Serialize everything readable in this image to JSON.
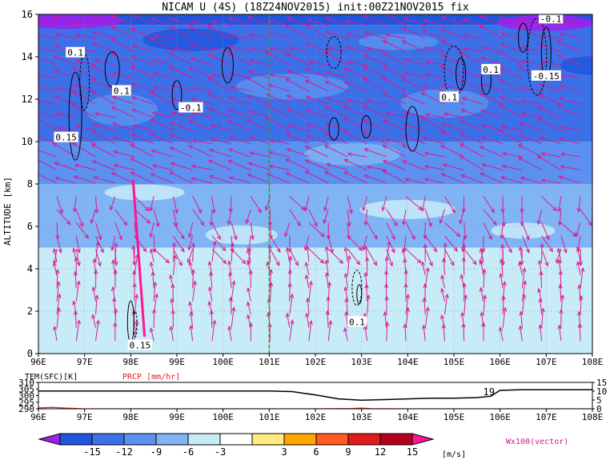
{
  "chart_data": [
    {
      "type": "heatmap",
      "title": "NICAM U (4S) (18Z24NOV2015) init:00Z21NOV2015 fix",
      "ylabel": "ALTITUDE [km]",
      "x_ticks": [
        "96E",
        "97E",
        "98E",
        "99E",
        "100E",
        "101E",
        "102E",
        "103E",
        "104E",
        "105E",
        "106E",
        "107E",
        "108E"
      ],
      "y_ticks": [
        "0",
        "2",
        "4",
        "6",
        "8",
        "10",
        "12",
        "14",
        "16"
      ],
      "xlim": [
        96,
        108
      ],
      "ylim": [
        0,
        16
      ],
      "marker_line_lon": 101,
      "field_description": "zonal wind U shaded in m/s; vectors show wind (Wx100)",
      "layers": [
        {
          "z_from": 0,
          "z_to": 3,
          "u": -1
        },
        {
          "z_from": 3,
          "z_to": 5,
          "u": -3
        },
        {
          "z_from": 5,
          "z_to": 7,
          "u": -4
        },
        {
          "z_from": 7,
          "z_to": 8,
          "u": -6
        },
        {
          "z_from": 8,
          "z_to": 10,
          "u": -9
        },
        {
          "z_from": 10,
          "z_to": 13,
          "u": -11
        },
        {
          "z_from": 13,
          "z_to": 15.5,
          "u": -12
        },
        {
          "z_from": 15.5,
          "z_to": 16,
          "u": -15
        }
      ],
      "contour_labels": [
        {
          "text": "0.1",
          "lon": 96.8,
          "z": 14.2
        },
        {
          "text": "0.1",
          "lon": 97.8,
          "z": 12.4
        },
        {
          "text": "-0.1",
          "lon": 99.3,
          "z": 11.6
        },
        {
          "text": "0.15",
          "lon": 96.6,
          "z": 10.2
        },
        {
          "text": "0.15",
          "lon": 98.2,
          "z": 0.4
        },
        {
          "text": "0.1",
          "lon": 102.9,
          "z": 1.5
        },
        {
          "text": "0.1",
          "lon": 104.9,
          "z": 12.1
        },
        {
          "text": "0.1",
          "lon": 105.8,
          "z": 13.4
        },
        {
          "text": "-0.15",
          "lon": 107.0,
          "z": 13.1
        },
        {
          "text": "-0.1",
          "lon": 107.1,
          "z": 15.8
        }
      ]
    },
    {
      "type": "line",
      "left_label": "TEM(SFC)[K]",
      "right_label": "PRCP [mm/hr]",
      "left_ticks": [
        "310",
        "305",
        "300",
        "295",
        "290"
      ],
      "right_ticks": [
        "15",
        "10",
        "5",
        "0"
      ],
      "x_ticks": [
        "96E",
        "97E",
        "98E",
        "99E",
        "100E",
        "101E",
        "102E",
        "103E",
        "104E",
        "105E",
        "106E",
        "107E",
        "108E"
      ],
      "left_ylim": [
        290,
        310
      ],
      "right_ylim": [
        0,
        15
      ],
      "series": [
        {
          "name": "TEM(SFC)[K]",
          "x": [
            96,
            97,
            98,
            99,
            100,
            101,
            101.5,
            102,
            102.5,
            103,
            103.5,
            104,
            104.5,
            105,
            105.5,
            105.8,
            106,
            106.5,
            107,
            108
          ],
          "y": [
            303.5,
            303.5,
            303.5,
            303.5,
            303.5,
            303.5,
            303,
            300.5,
            297.5,
            296.5,
            297,
            297.5,
            298,
            298,
            298.5,
            299.5,
            304,
            304.5,
            304.5,
            304.5
          ]
        },
        {
          "name": "PRCP [mm/hr]",
          "x": [
            96,
            96.3,
            96.6,
            97,
            98,
            99,
            100,
            101,
            102,
            102.8,
            103,
            103.2,
            104,
            105,
            106,
            107,
            108
          ],
          "y": [
            0.5,
            0.8,
            0.4,
            0,
            0,
            0,
            0,
            0,
            0,
            0.2,
            0.4,
            0.1,
            0,
            0,
            0,
            0,
            0
          ]
        }
      ],
      "annotation": "19"
    },
    {
      "type": "colorbar",
      "levels": [
        "-15",
        "-12",
        "-9",
        "-6",
        "-3",
        "3",
        "6",
        "9",
        "12",
        "15"
      ],
      "unit_label": "[m/s]",
      "colors": [
        "#a020f0",
        "#2255dd",
        "#3b70e8",
        "#5b91f0",
        "#80b4f5",
        "#c7ebf7",
        "#ffffff",
        "#ffeb80",
        "#ffa500",
        "#ff5a1f",
        "#e01b1b",
        "#b3001a",
        "#ff1493"
      ]
    }
  ],
  "vector_legend": "Wx100(vector)"
}
